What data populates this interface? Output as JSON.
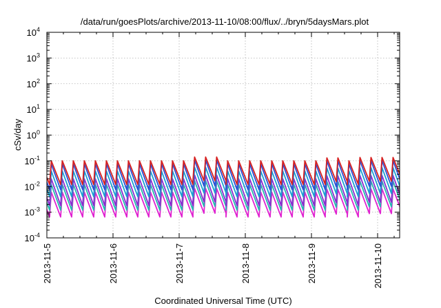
{
  "chart_data": {
    "type": "line",
    "title": "/data/run/goesPlots/archive/2013-11-10/08:00/flux/../bryn/5daysMars.plot",
    "xlabel": "Coordinated Universal Time (UTC)",
    "ylabel": "cSv/day",
    "yscale": "log",
    "ylim": [
      0.0001,
      10000
    ],
    "xlim": [
      "2013-11-05T00:00",
      "2013-11-10T08:00"
    ],
    "x_tick_labels": [
      "2013-11-5",
      "2013-11-6",
      "2013-11-7",
      "2013-11-8",
      "2013-11-9",
      "2013-11-10"
    ],
    "y_tick_labels": [
      {
        "base": "10",
        "exp": "4"
      },
      {
        "base": "10",
        "exp": "3"
      },
      {
        "base": "10",
        "exp": "2"
      },
      {
        "base": "10",
        "exp": "1"
      },
      {
        "base": "10",
        "exp": "0"
      },
      {
        "base": "10",
        "exp": "-1"
      },
      {
        "base": "10",
        "exp": "-2"
      },
      {
        "base": "10",
        "exp": "-3"
      },
      {
        "base": "10",
        "exp": "-4"
      }
    ],
    "grid": true,
    "legend": "none",
    "cycle_hours": 4,
    "series": [
      {
        "color": "#d62020",
        "peak": 0.1,
        "trough": 0.012
      },
      {
        "color": "#2a4fd6",
        "peak": 0.075,
        "trough": 0.0075
      },
      {
        "color": "#1aa0d0",
        "peak": 0.04,
        "trough": 0.004
      },
      {
        "color": "#8a2ad0",
        "peak": 0.02,
        "trough": 0.0018
      },
      {
        "color": "#26b6b0",
        "peak": 0.012,
        "trough": 0.0012
      },
      {
        "color": "#e020d0",
        "peak": 0.006,
        "trough": 0.00065
      }
    ],
    "enhanced_periods": [
      {
        "start": "2013-11-07T02:00",
        "end": "2013-11-07T16:00",
        "factor": 1.4
      },
      {
        "start": "2013-11-09T03:00",
        "end": "2013-11-09T10:00",
        "factor": 1.3
      },
      {
        "start": "2013-11-09T17:00",
        "end": "2013-11-10T06:00",
        "factor": 1.35
      }
    ]
  }
}
